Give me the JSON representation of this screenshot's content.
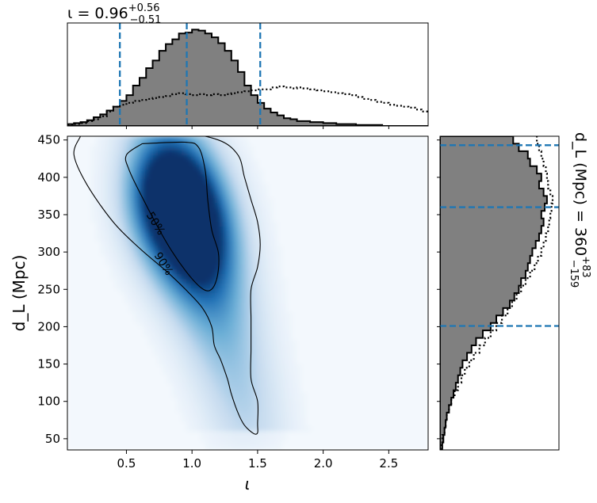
{
  "chart_data": [
    {
      "type": "heatmap",
      "panel": "joint",
      "xlabel": "ι",
      "ylabel": "d_L (Mpc)",
      "xlim": [
        0.05,
        2.8
      ],
      "ylim": [
        35,
        455
      ],
      "xticks": [
        0.5,
        1.0,
        1.5,
        2.0,
        2.5
      ],
      "xtick_labels": [
        "0.5",
        "1.0",
        "1.5",
        "2.0",
        "2.5"
      ],
      "yticks": [
        50,
        100,
        150,
        200,
        250,
        300,
        350,
        400,
        450
      ],
      "ytick_labels": [
        "50",
        "100",
        "150",
        "200",
        "250",
        "300",
        "350",
        "400",
        "450"
      ],
      "colormap": "Blues",
      "density_peaks": [
        {
          "x": 0.82,
          "y": 385,
          "weight": 1.0
        },
        {
          "x": 0.98,
          "y": 335,
          "weight": 0.85
        },
        {
          "x": 1.1,
          "y": 285,
          "weight": 0.45
        },
        {
          "x": 1.25,
          "y": 200,
          "weight": 0.22
        },
        {
          "x": 1.4,
          "y": 100,
          "weight": 0.12
        }
      ],
      "contours": [
        {
          "label": "50%",
          "label_at": {
            "x": 0.72,
            "y": 338
          },
          "points": [
            [
              0.62,
              445
            ],
            [
              0.95,
              447
            ],
            [
              1.05,
              440
            ],
            [
              1.1,
              410
            ],
            [
              1.12,
              370
            ],
            [
              1.15,
              330
            ],
            [
              1.2,
              300
            ],
            [
              1.2,
              275
            ],
            [
              1.17,
              255
            ],
            [
              1.12,
              248
            ],
            [
              1.05,
              255
            ],
            [
              0.95,
              275
            ],
            [
              0.85,
              300
            ],
            [
              0.75,
              330
            ],
            [
              0.63,
              370
            ],
            [
              0.52,
              410
            ],
            [
              0.5,
              430
            ],
            [
              0.62,
              445
            ]
          ]
        },
        {
          "label": "90%",
          "label_at": {
            "x": 0.78,
            "y": 284
          },
          "points": [
            [
              0.15,
              455
            ],
            [
              0.9,
              458
            ],
            [
              1.2,
              450
            ],
            [
              1.35,
              430
            ],
            [
              1.4,
              400
            ],
            [
              1.45,
              370
            ],
            [
              1.5,
              340
            ],
            [
              1.52,
              310
            ],
            [
              1.5,
              280
            ],
            [
              1.45,
              250
            ],
            [
              1.45,
              210
            ],
            [
              1.45,
              170
            ],
            [
              1.45,
              130
            ],
            [
              1.5,
              100
            ],
            [
              1.5,
              70
            ],
            [
              1.5,
              58
            ],
            [
              1.47,
              57
            ],
            [
              1.4,
              68
            ],
            [
              1.35,
              85
            ],
            [
              1.3,
              110
            ],
            [
              1.27,
              130
            ],
            [
              1.22,
              155
            ],
            [
              1.17,
              175
            ],
            [
              1.15,
              200
            ],
            [
              1.08,
              225
            ],
            [
              0.95,
              250
            ],
            [
              0.8,
              275
            ],
            [
              0.6,
              305
            ],
            [
              0.4,
              340
            ],
            [
              0.2,
              390
            ],
            [
              0.1,
              430
            ],
            [
              0.15,
              455
            ]
          ]
        }
      ]
    },
    {
      "type": "area",
      "panel": "top-marginal",
      "title": "ι = 0.96",
      "title_sup": "+0.56",
      "title_sub": "−0.51",
      "xlim": [
        0.05,
        2.8
      ],
      "bins_start": 0.05,
      "bin_width": 0.05,
      "series": [
        {
          "style": "filled-step",
          "values": [
            0.02,
            0.03,
            0.04,
            0.06,
            0.09,
            0.12,
            0.16,
            0.2,
            0.26,
            0.32,
            0.42,
            0.5,
            0.6,
            0.68,
            0.78,
            0.85,
            0.9,
            0.96,
            0.97,
            1.0,
            0.99,
            0.96,
            0.92,
            0.86,
            0.78,
            0.68,
            0.56,
            0.42,
            0.32,
            0.24,
            0.18,
            0.14,
            0.11,
            0.08,
            0.07,
            0.05,
            0.05,
            0.04,
            0.04,
            0.03,
            0.03,
            0.02,
            0.02,
            0.02,
            0.01,
            0.01,
            0.01,
            0.01,
            0.0,
            0.0,
            0.0,
            0.0,
            0.0,
            0.0,
            0.0
          ]
        },
        {
          "style": "dotted-step",
          "values": [
            0.01,
            0.02,
            0.03,
            0.05,
            0.07,
            0.1,
            0.15,
            0.2,
            0.22,
            0.24,
            0.26,
            0.27,
            0.28,
            0.29,
            0.3,
            0.31,
            0.33,
            0.34,
            0.33,
            0.32,
            0.33,
            0.32,
            0.33,
            0.32,
            0.33,
            0.34,
            0.35,
            0.36,
            0.37,
            0.38,
            0.38,
            0.4,
            0.41,
            0.4,
            0.39,
            0.4,
            0.39,
            0.38,
            0.37,
            0.36,
            0.35,
            0.34,
            0.33,
            0.32,
            0.3,
            0.28,
            0.27,
            0.25,
            0.24,
            0.22,
            0.21,
            0.2,
            0.19,
            0.17,
            0.15
          ]
        }
      ],
      "quantile_lines": [
        0.45,
        0.96,
        1.52
      ]
    },
    {
      "type": "area",
      "panel": "right-marginal",
      "title": "d_L (Mpc) = 360",
      "title_sup": "+83",
      "title_sub": "−159",
      "ylim": [
        35,
        455
      ],
      "bins_start": 35,
      "bin_width": 10,
      "series": [
        {
          "style": "filled-step",
          "values": [
            0.02,
            0.03,
            0.04,
            0.05,
            0.06,
            0.08,
            0.1,
            0.12,
            0.14,
            0.16,
            0.18,
            0.2,
            0.24,
            0.28,
            0.32,
            0.38,
            0.45,
            0.5,
            0.56,
            0.62,
            0.66,
            0.7,
            0.72,
            0.76,
            0.78,
            0.8,
            0.82,
            0.85,
            0.88,
            0.9,
            0.92,
            0.9,
            0.93,
            0.95,
            0.92,
            0.88,
            0.9,
            0.86,
            0.8,
            0.78,
            0.7,
            0.65
          ]
        },
        {
          "style": "dotted-step",
          "values": [
            0.01,
            0.02,
            0.04,
            0.05,
            0.06,
            0.08,
            0.1,
            0.13,
            0.16,
            0.19,
            0.22,
            0.26,
            0.3,
            0.35,
            0.4,
            0.45,
            0.5,
            0.55,
            0.6,
            0.64,
            0.68,
            0.72,
            0.76,
            0.8,
            0.84,
            0.87,
            0.9,
            0.92,
            0.94,
            0.96,
            0.97,
            0.98,
            0.99,
            1.0,
            0.98,
            0.96,
            0.95,
            0.94,
            0.92,
            0.9,
            0.88,
            0.86
          ]
        }
      ],
      "quantile_lines": [
        201,
        360,
        443
      ]
    }
  ]
}
